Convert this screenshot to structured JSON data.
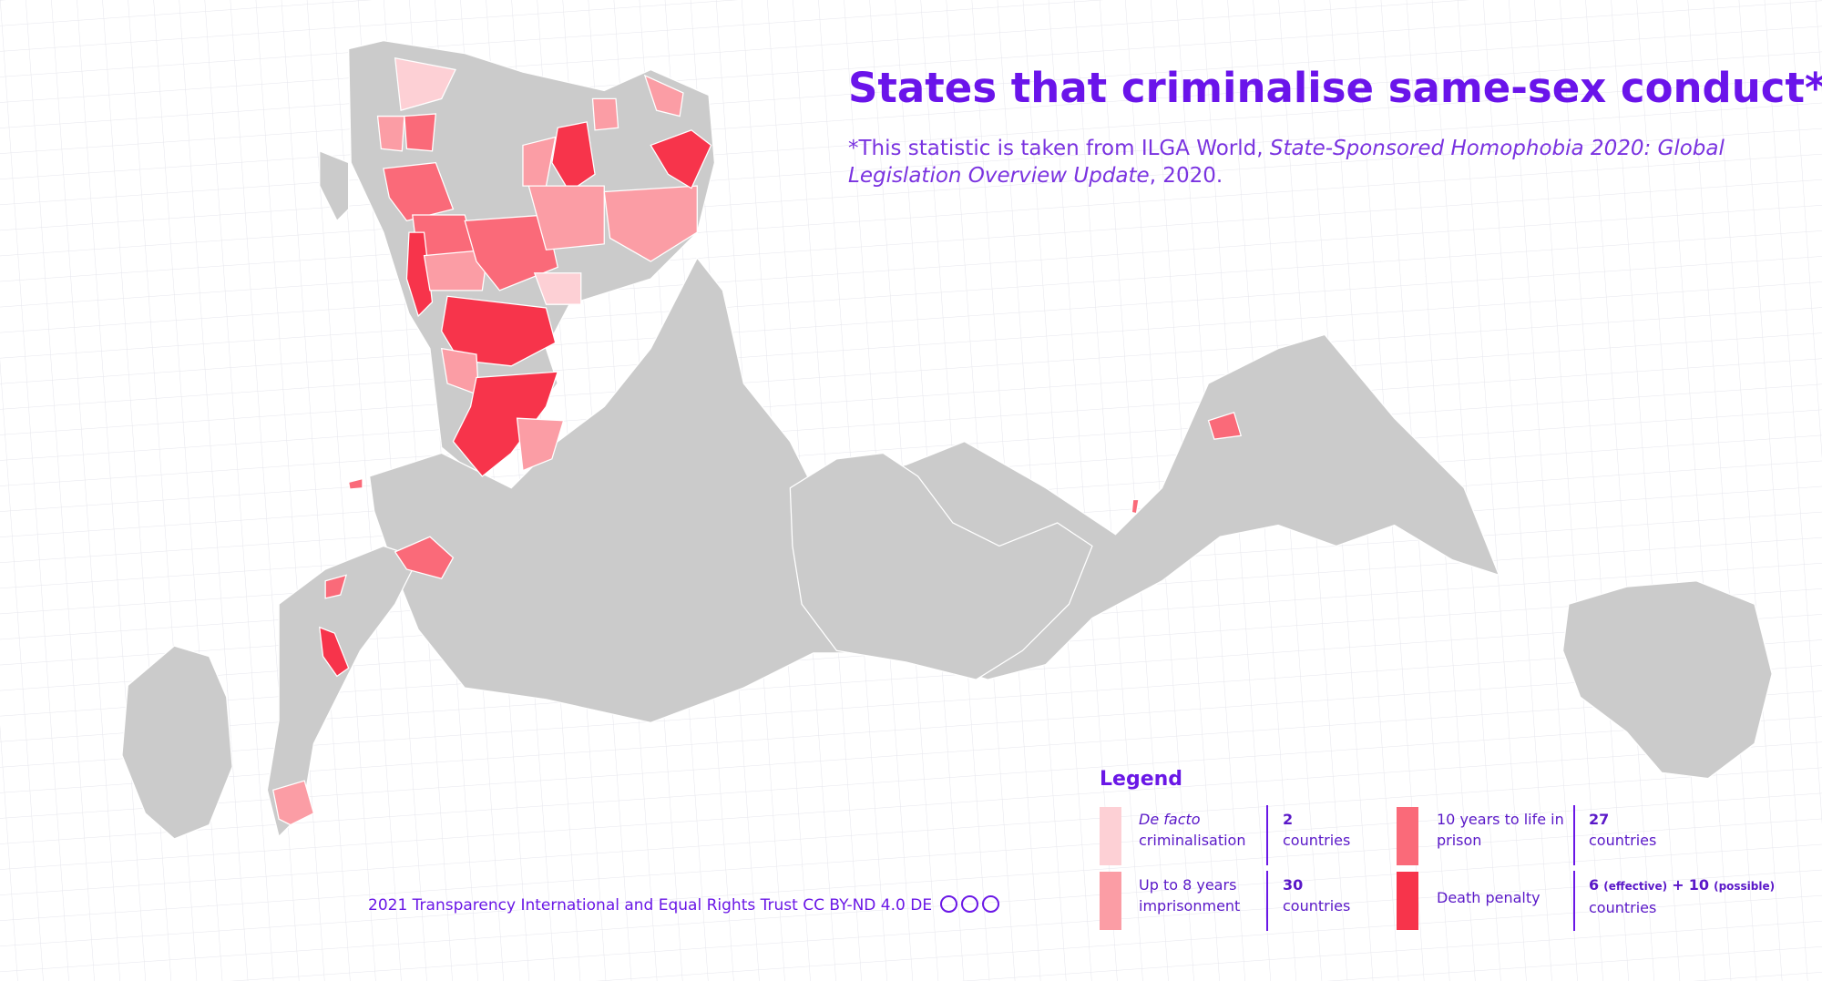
{
  "title": "States that criminalise same-sex conduct*",
  "subtitle": {
    "lead": "*This statistic is taken from ILGA World, ",
    "source_title": "State-Sponsored Homophobia 2020: Global Legislation Overview Update",
    "tail": ", 2020."
  },
  "legend": {
    "heading": "Legend",
    "items": [
      {
        "label_italic": "De facto",
        "label": "criminalisation",
        "count": 2,
        "count_unit": "countries",
        "color": "#fdd0d5"
      },
      {
        "label": "Up to 8 years imprisonment",
        "count": 30,
        "count_unit": "countries",
        "color": "#fb9da5"
      },
      {
        "label": "10 years to life in prison",
        "count": 27,
        "count_unit": "countries",
        "color": "#fa6a79"
      },
      {
        "label": "Death penalty",
        "count": 6,
        "count_note": "(effective)",
        "plus": "+",
        "count_possible": 10,
        "possible_note": "(possible)",
        "count_unit": "countries",
        "color": "#f7344b"
      }
    ]
  },
  "credit": "2021 Transparency International and Equal Rights Trust CC BY-ND 4.0 DE"
}
